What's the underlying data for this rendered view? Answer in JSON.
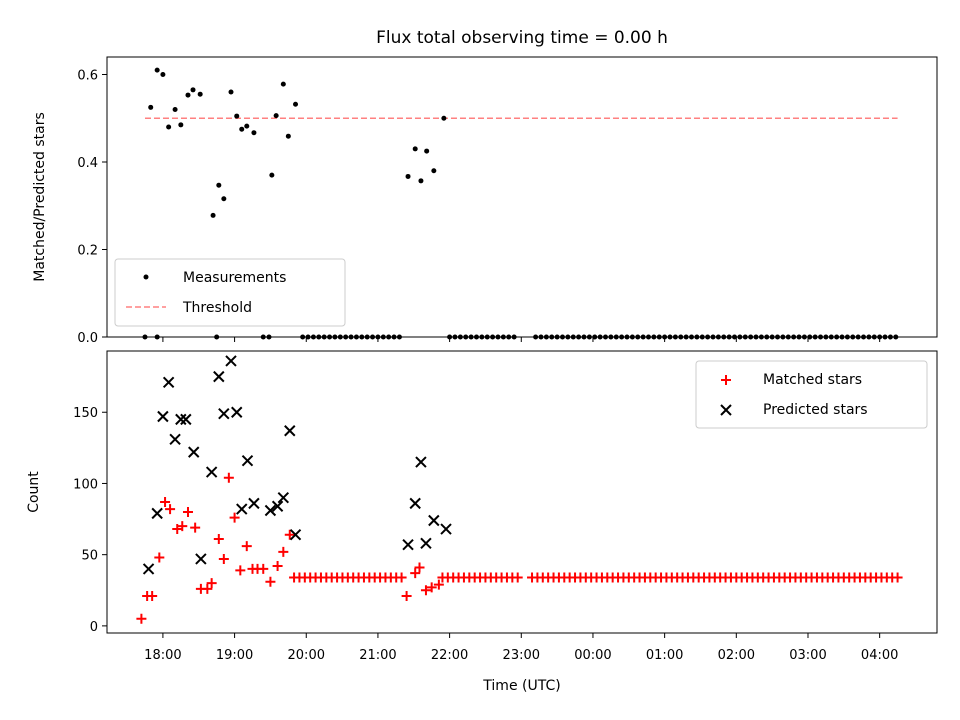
{
  "colors": {
    "threshold": "#ff8080",
    "matched": "#ff0000",
    "predicted": "#000000",
    "measurement": "#000000"
  },
  "chart_data": [
    {
      "type": "scatter",
      "title": "Flux total observing time = 0.00 h",
      "ylabel": "Matched/Predicted stars",
      "xlabel": "",
      "xlim": [
        17.22,
        4.8
      ],
      "ylim": [
        0.0,
        0.64
      ],
      "xticks": [],
      "yticks": [
        0.0,
        0.2,
        0.4,
        0.6
      ],
      "ytick_labels": [
        "0.0",
        "0.2",
        "0.4",
        "0.6"
      ],
      "grid": false,
      "legend_position": "lower-left",
      "series": [
        {
          "name": "Measurements",
          "marker": "dot",
          "points": [
            [
              17.75,
              0
            ],
            [
              17.92,
              0
            ],
            [
              18.75,
              0
            ],
            [
              19.4,
              0
            ],
            [
              19.48,
              0
            ],
            [
              17.83,
              0.525
            ],
            [
              17.92,
              0.61
            ],
            [
              18.0,
              0.6
            ],
            [
              18.08,
              0.48
            ],
            [
              18.17,
              0.52
            ],
            [
              18.25,
              0.485
            ],
            [
              18.35,
              0.553
            ],
            [
              18.42,
              0.565
            ],
            [
              18.52,
              0.555
            ],
            [
              18.7,
              0.278
            ],
            [
              18.78,
              0.347
            ],
            [
              18.85,
              0.316
            ],
            [
              18.95,
              0.56
            ],
            [
              19.03,
              0.505
            ],
            [
              19.1,
              0.475
            ],
            [
              19.17,
              0.482
            ],
            [
              19.27,
              0.467
            ],
            [
              19.52,
              0.37
            ],
            [
              19.58,
              0.506
            ],
            [
              19.68,
              0.578
            ],
            [
              19.75,
              0.459
            ],
            [
              19.85,
              0.532
            ],
            [
              21.42,
              0.367
            ],
            [
              21.52,
              0.43
            ],
            [
              21.6,
              0.357
            ],
            [
              21.68,
              0.425
            ],
            [
              21.78,
              0.38
            ],
            [
              21.92,
              0.5
            ]
          ],
          "zero_runs": [
            [
              19.95,
              21.35,
              0.075
            ],
            [
              22.0,
              22.95,
              0.075
            ],
            [
              23.2,
              28.25,
              0.075
            ]
          ]
        },
        {
          "name": "Threshold",
          "style": "dashed",
          "line": [
            [
              17.75,
              0.5
            ],
            [
              28.25,
              0.5
            ]
          ]
        }
      ]
    },
    {
      "type": "scatter",
      "title": "",
      "ylabel": "Count",
      "xlabel": "Time (UTC)",
      "xlim": [
        17.22,
        4.8
      ],
      "ylim": [
        -5,
        193
      ],
      "xticks": [
        18,
        19,
        20,
        21,
        22,
        23,
        24,
        25,
        26,
        27,
        28
      ],
      "xtick_labels": [
        "18:00",
        "19:00",
        "20:00",
        "21:00",
        "22:00",
        "23:00",
        "00:00",
        "01:00",
        "02:00",
        "03:00",
        "04:00"
      ],
      "yticks": [
        0,
        50,
        100,
        150
      ],
      "ytick_labels": [
        "0",
        "50",
        "100",
        "150"
      ],
      "grid": false,
      "legend_position": "upper-right",
      "series": [
        {
          "name": "Matched stars",
          "marker": "plus",
          "points": [
            [
              17.7,
              5
            ],
            [
              17.78,
              21
            ],
            [
              17.85,
              21
            ],
            [
              17.95,
              48
            ],
            [
              18.03,
              87
            ],
            [
              18.1,
              82
            ],
            [
              18.2,
              68
            ],
            [
              18.27,
              70
            ],
            [
              18.35,
              80
            ],
            [
              18.45,
              69
            ],
            [
              18.53,
              26
            ],
            [
              18.62,
              26
            ],
            [
              18.68,
              30
            ],
            [
              18.78,
              61
            ],
            [
              18.85,
              47
            ],
            [
              18.92,
              104
            ],
            [
              19.0,
              76
            ],
            [
              19.08,
              39
            ],
            [
              19.17,
              56
            ],
            [
              19.25,
              40
            ],
            [
              19.32,
              40
            ],
            [
              19.4,
              40
            ],
            [
              19.5,
              31
            ],
            [
              19.6,
              42
            ],
            [
              19.68,
              52
            ],
            [
              19.77,
              64
            ],
            [
              21.4,
              21
            ],
            [
              21.52,
              37
            ],
            [
              21.58,
              41
            ],
            [
              21.67,
              25
            ],
            [
              21.75,
              27
            ],
            [
              21.85,
              29
            ]
          ],
          "flat_runs": [
            [
              19.83,
              21.35,
              0.075,
              34
            ],
            [
              21.9,
              22.95,
              0.075,
              34
            ],
            [
              23.15,
              28.25,
              0.075,
              34
            ]
          ]
        },
        {
          "name": "Predicted stars",
          "marker": "x",
          "points": [
            [
              17.8,
              40
            ],
            [
              17.92,
              79
            ],
            [
              18.0,
              147
            ],
            [
              18.08,
              171
            ],
            [
              18.17,
              131
            ],
            [
              18.25,
              145
            ],
            [
              18.32,
              145
            ],
            [
              18.43,
              122
            ],
            [
              18.53,
              47
            ],
            [
              18.68,
              108
            ],
            [
              18.78,
              175
            ],
            [
              18.85,
              149
            ],
            [
              18.95,
              186
            ],
            [
              19.03,
              150
            ],
            [
              19.1,
              82
            ],
            [
              19.18,
              116
            ],
            [
              19.27,
              86
            ],
            [
              19.5,
              81
            ],
            [
              19.6,
              84
            ],
            [
              19.68,
              90
            ],
            [
              19.77,
              137
            ],
            [
              19.85,
              64
            ],
            [
              21.42,
              57
            ],
            [
              21.52,
              86
            ],
            [
              21.6,
              115
            ],
            [
              21.67,
              58
            ],
            [
              21.78,
              74
            ],
            [
              21.95,
              68
            ]
          ]
        }
      ]
    }
  ]
}
